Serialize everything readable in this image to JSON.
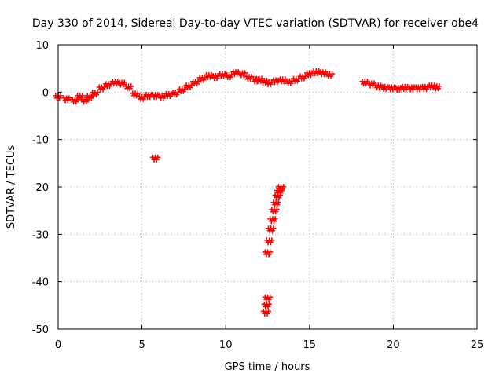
{
  "chart_data": {
    "type": "scatter",
    "title": "Day 330 of 2014, Sidereal Day-to-day VTEC variation (SDTVAR) for receiver obe4",
    "xlabel": "GPS time / hours",
    "ylabel": "SDTVAR / TECUs",
    "xlim": [
      0,
      25
    ],
    "ylim": [
      -50,
      10
    ],
    "xticks": [
      0,
      5,
      10,
      15,
      20,
      25
    ],
    "yticks": [
      10,
      0,
      -10,
      -20,
      -30,
      -40,
      -50
    ],
    "xtick_labels": [
      "0",
      "5",
      "10",
      "15",
      "20",
      "25"
    ],
    "ytick_labels": [
      "10",
      "0",
      "-10",
      "-20",
      "-30",
      "-40",
      "-50"
    ],
    "grid": true,
    "marker": "+",
    "color": "#ff0000",
    "series": [
      {
        "name": "SDTVAR",
        "points": [
          [
            0.0,
            -1.0
          ],
          [
            0.5,
            -1.5
          ],
          [
            1.0,
            -1.8
          ],
          [
            1.3,
            -1.0
          ],
          [
            1.6,
            -1.8
          ],
          [
            1.9,
            -1.0
          ],
          [
            2.2,
            -0.3
          ],
          [
            2.6,
            0.8
          ],
          [
            3.0,
            1.5
          ],
          [
            3.4,
            2.0
          ],
          [
            3.8,
            1.8
          ],
          [
            4.2,
            1.0
          ],
          [
            4.6,
            -0.5
          ],
          [
            5.0,
            -1.2
          ],
          [
            5.4,
            -0.8
          ],
          [
            5.8,
            -0.8
          ],
          [
            6.2,
            -1.0
          ],
          [
            6.6,
            -0.6
          ],
          [
            7.0,
            -0.3
          ],
          [
            7.4,
            0.4
          ],
          [
            7.8,
            1.2
          ],
          [
            8.2,
            2.0
          ],
          [
            8.6,
            2.8
          ],
          [
            9.0,
            3.4
          ],
          [
            9.4,
            3.2
          ],
          [
            9.8,
            3.6
          ],
          [
            10.2,
            3.4
          ],
          [
            10.6,
            4.0
          ],
          [
            11.0,
            3.8
          ],
          [
            11.4,
            3.0
          ],
          [
            11.8,
            2.5
          ],
          [
            12.0,
            2.6
          ],
          [
            12.3,
            2.2
          ],
          [
            12.6,
            1.9
          ],
          [
            13.0,
            2.3
          ],
          [
            13.4,
            2.5
          ],
          [
            13.8,
            2.1
          ],
          [
            14.2,
            2.6
          ],
          [
            14.6,
            3.1
          ],
          [
            15.0,
            3.8
          ],
          [
            15.4,
            4.2
          ],
          [
            15.8,
            4.0
          ],
          [
            16.2,
            3.6
          ],
          [
            18.3,
            2.0
          ],
          [
            18.7,
            1.6
          ],
          [
            19.1,
            1.2
          ],
          [
            19.5,
            0.9
          ],
          [
            19.9,
            0.8
          ],
          [
            20.3,
            0.7
          ],
          [
            20.7,
            0.9
          ],
          [
            21.1,
            0.8
          ],
          [
            21.5,
            0.8
          ],
          [
            21.9,
            0.9
          ],
          [
            22.3,
            1.2
          ],
          [
            22.6,
            1.0
          ],
          [
            5.8,
            -14.0
          ],
          [
            12.5,
            -34.0
          ],
          [
            12.6,
            -31.5
          ],
          [
            12.7,
            -29.0
          ],
          [
            12.8,
            -27.0
          ],
          [
            12.9,
            -25.0
          ],
          [
            13.0,
            -23.5
          ],
          [
            13.1,
            -22.0
          ],
          [
            13.2,
            -21.0
          ],
          [
            13.3,
            -20.2
          ],
          [
            12.4,
            -46.5
          ],
          [
            12.45,
            -45.0
          ],
          [
            12.5,
            -43.5
          ]
        ]
      }
    ]
  }
}
